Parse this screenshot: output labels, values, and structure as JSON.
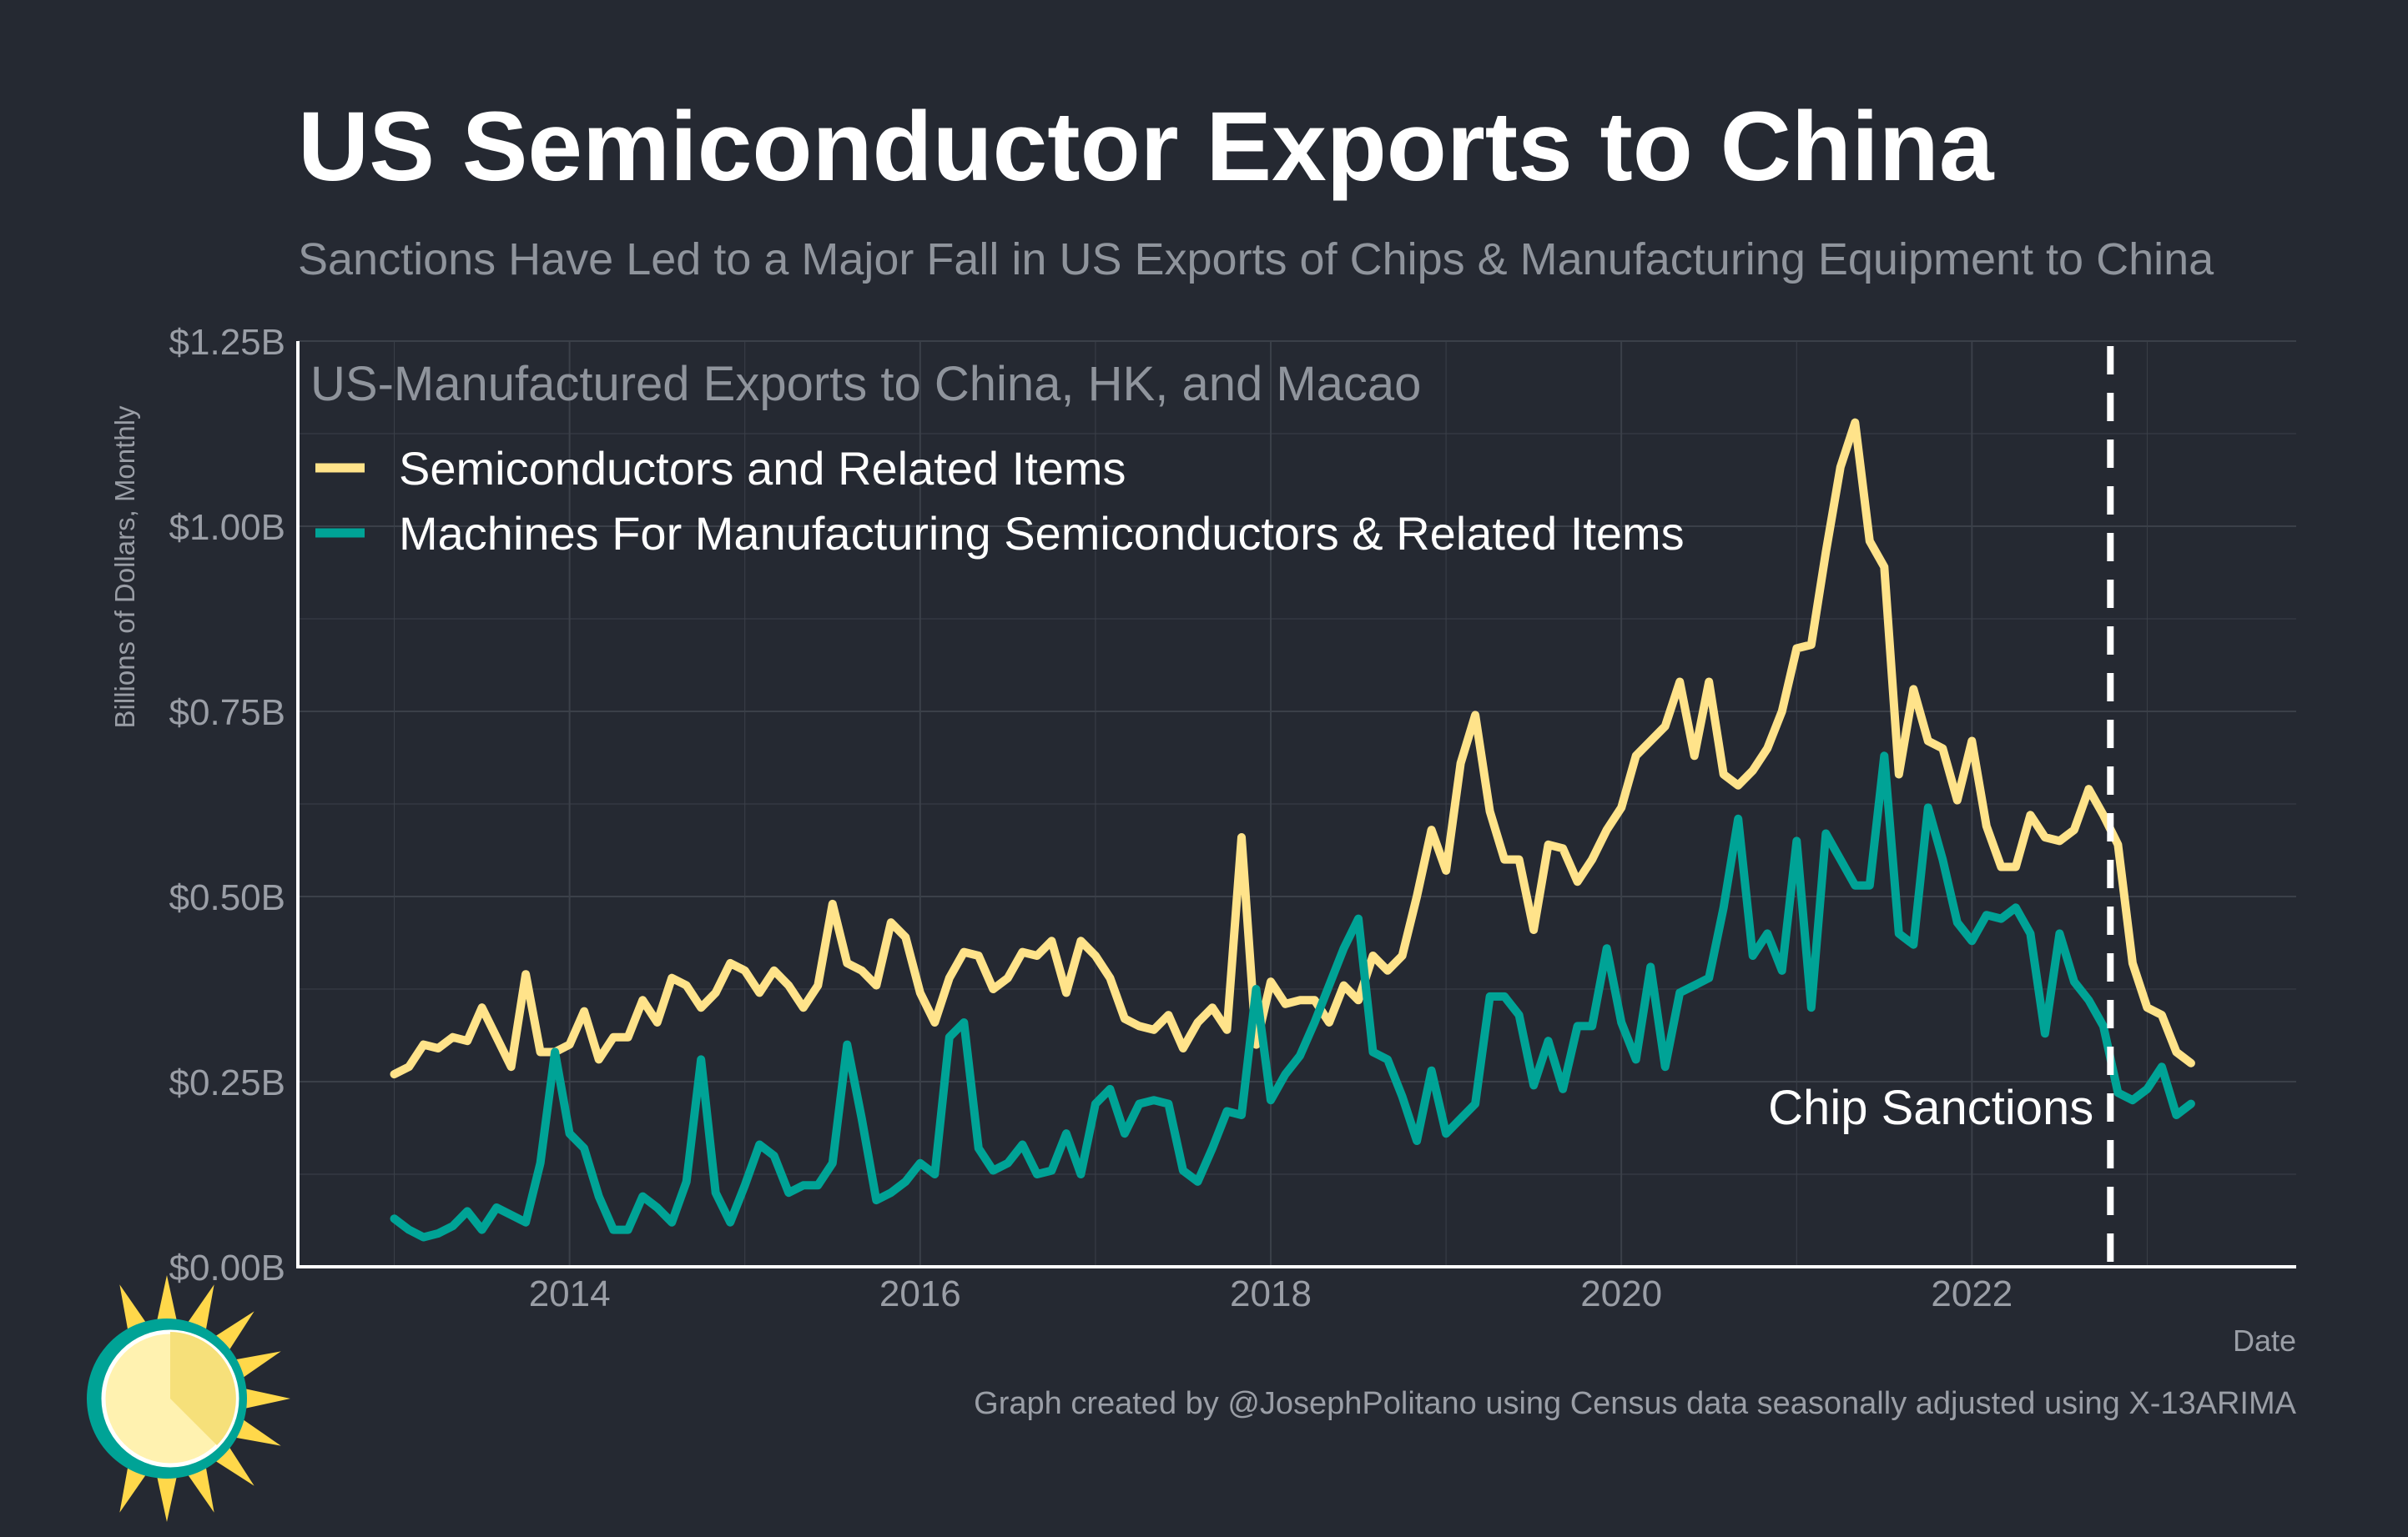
{
  "title": "US Semiconductor Exports to China",
  "subtitle": "Sanctions Have Led to a Major Fall in US Exports of Chips & Manufacturing Equipment to China",
  "caption": "Graph created by @JosephPolitano using Census data seasonally adjusted using X-13ARIMA",
  "logo_icon": "sun-logo-icon",
  "colors": {
    "background": "#252932",
    "grid": "#3b4049",
    "axis": "#ffffff",
    "tick_text": "#9a9ea6",
    "semis": "#ffe38a",
    "machines": "#00a396",
    "sanction_line": "#ffffff"
  },
  "chart_data": {
    "type": "line",
    "title": "US-Manufactured Exports to China, HK, and Macao",
    "xlabel": "Date",
    "ylabel": "Billions of Dollars, Monthly",
    "xlim": [
      2012.45,
      2023.85
    ],
    "ylim": [
      0,
      1.25
    ],
    "x_ticks": [
      2014,
      2016,
      2018,
      2020,
      2022
    ],
    "x_tick_labels": [
      "2014",
      "2016",
      "2018",
      "2020",
      "2022"
    ],
    "y_ticks": [
      0,
      0.25,
      0.5,
      0.75,
      1.0,
      1.25
    ],
    "y_tick_labels": [
      "$0.00B",
      "$0.25B",
      "$0.50B",
      "$0.75B",
      "$1.00B",
      "$1.25B"
    ],
    "grid": true,
    "legend_position": "top-left",
    "annotation": {
      "label": "Chip Sanctions",
      "x": 2022.79
    },
    "x_start": 2013.0,
    "x_step_months": 1,
    "series": [
      {
        "name": "Semiconductors and Related Items",
        "values": [
          0.26,
          0.27,
          0.3,
          0.295,
          0.31,
          0.305,
          0.35,
          0.31,
          0.27,
          0.395,
          0.29,
          0.29,
          0.3,
          0.345,
          0.28,
          0.31,
          0.31,
          0.36,
          0.33,
          0.39,
          0.38,
          0.35,
          0.37,
          0.41,
          0.4,
          0.37,
          0.4,
          0.38,
          0.35,
          0.38,
          0.49,
          0.41,
          0.4,
          0.38,
          0.465,
          0.445,
          0.37,
          0.33,
          0.39,
          0.425,
          0.42,
          0.375,
          0.39,
          0.425,
          0.42,
          0.44,
          0.37,
          0.44,
          0.42,
          0.39,
          0.335,
          0.325,
          0.32,
          0.34,
          0.295,
          0.33,
          0.35,
          0.32,
          0.58,
          0.3,
          0.385,
          0.355,
          0.36,
          0.36,
          0.33,
          0.38,
          0.36,
          0.42,
          0.4,
          0.42,
          0.5,
          0.59,
          0.535,
          0.68,
          0.745,
          0.615,
          0.55,
          0.55,
          0.455,
          0.57,
          0.565,
          0.52,
          0.55,
          0.59,
          0.62,
          0.69,
          0.71,
          0.73,
          0.79,
          0.69,
          0.79,
          0.665,
          0.65,
          0.67,
          0.7,
          0.75,
          0.835,
          0.84,
          0.965,
          1.08,
          1.14,
          0.98,
          0.945,
          0.665,
          0.78,
          0.71,
          0.7,
          0.63,
          0.71,
          0.595,
          0.54,
          0.54,
          0.61,
          0.58,
          0.575,
          0.59,
          0.645,
          0.61,
          0.57,
          0.41,
          0.35,
          0.34,
          0.29,
          0.275
        ]
      },
      {
        "name": "Machines For Manufacturing Semiconductors & Related Items",
        "values": [
          0.065,
          0.05,
          0.04,
          0.045,
          0.055,
          0.075,
          0.05,
          0.08,
          0.07,
          0.06,
          0.14,
          0.29,
          0.18,
          0.16,
          0.095,
          0.05,
          0.05,
          0.095,
          0.08,
          0.06,
          0.115,
          0.28,
          0.1,
          0.06,
          0.11,
          0.165,
          0.15,
          0.1,
          0.11,
          0.11,
          0.14,
          0.3,
          0.2,
          0.09,
          0.1,
          0.115,
          0.14,
          0.125,
          0.31,
          0.33,
          0.16,
          0.13,
          0.14,
          0.165,
          0.125,
          0.13,
          0.18,
          0.125,
          0.22,
          0.24,
          0.18,
          0.22,
          0.225,
          0.22,
          0.13,
          0.115,
          0.16,
          0.21,
          0.205,
          0.375,
          0.225,
          0.26,
          0.285,
          0.33,
          0.38,
          0.43,
          0.47,
          0.29,
          0.28,
          0.23,
          0.17,
          0.265,
          0.18,
          0.2,
          0.22,
          0.365,
          0.365,
          0.34,
          0.245,
          0.305,
          0.24,
          0.325,
          0.325,
          0.43,
          0.33,
          0.28,
          0.405,
          0.27,
          0.37,
          0.38,
          0.39,
          0.485,
          0.605,
          0.42,
          0.45,
          0.4,
          0.575,
          0.35,
          0.585,
          0.55,
          0.515,
          0.515,
          0.69,
          0.45,
          0.435,
          0.62,
          0.55,
          0.465,
          0.44,
          0.475,
          0.47,
          0.485,
          0.45,
          0.315,
          0.45,
          0.385,
          0.36,
          0.325,
          0.235,
          0.225,
          0.24,
          0.27,
          0.205,
          0.22
        ]
      }
    ]
  }
}
